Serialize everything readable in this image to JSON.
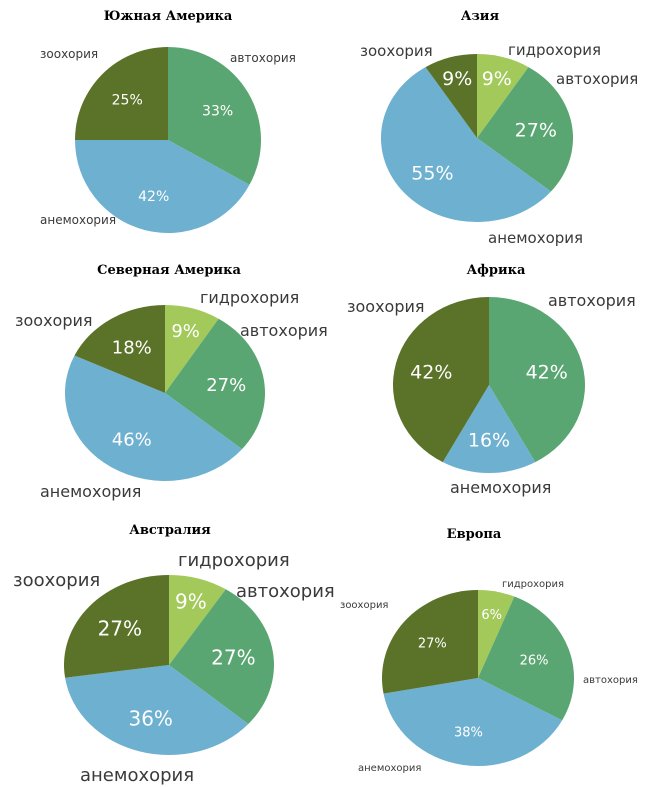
{
  "colors": {
    "зоохория": "#5b7328",
    "гидрохория": "#a3c95a",
    "автохория": "#5aa672",
    "анемохория": "#6db0cf"
  },
  "chart_data": [
    {
      "type": "pie",
      "title": "Южная Америка",
      "slices": [
        {
          "label": "автохория",
          "value": 33
        },
        {
          "label": "анемохория",
          "value": 42
        },
        {
          "label": "зоохория",
          "value": 25
        }
      ]
    },
    {
      "type": "pie",
      "title": "Азия",
      "slices": [
        {
          "label": "гидрохория",
          "value": 9
        },
        {
          "label": "автохория",
          "value": 27
        },
        {
          "label": "анемохория",
          "value": 55
        },
        {
          "label": "зоохория",
          "value": 9
        }
      ]
    },
    {
      "type": "pie",
      "title": "Северная Америка",
      "slices": [
        {
          "label": "гидрохория",
          "value": 9
        },
        {
          "label": "автохория",
          "value": 27
        },
        {
          "label": "анемохория",
          "value": 46
        },
        {
          "label": "зоохория",
          "value": 18
        }
      ]
    },
    {
      "type": "pie",
      "title": "Африка",
      "slices": [
        {
          "label": "автохория",
          "value": 42
        },
        {
          "label": "анемохория",
          "value": 16
        },
        {
          "label": "зоохория",
          "value": 42
        }
      ]
    },
    {
      "type": "pie",
      "title": "Австралия",
      "slices": [
        {
          "label": "гидрохория",
          "value": 9
        },
        {
          "label": "автохория",
          "value": 27
        },
        {
          "label": "анемохория",
          "value": 36
        },
        {
          "label": "зоохория",
          "value": 27
        }
      ]
    },
    {
      "type": "pie",
      "title": "Европа",
      "slices": [
        {
          "label": "гидрохория",
          "value": 6
        },
        {
          "label": "автохория",
          "value": 26
        },
        {
          "label": "анемохория",
          "value": 38
        },
        {
          "label": "зоохория",
          "value": 27
        }
      ]
    }
  ]
}
